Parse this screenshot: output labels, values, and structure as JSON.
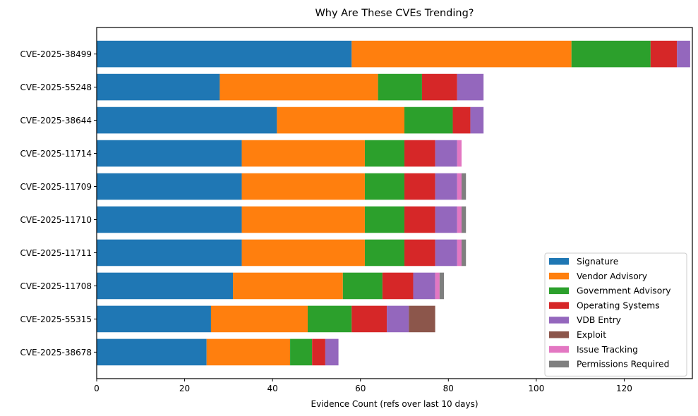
{
  "chart_data": {
    "type": "bar",
    "orientation": "horizontal",
    "stacked": true,
    "title": "Why Are These CVEs Trending?",
    "xlabel": "Evidence Count (refs over last 10 days)",
    "ylabel": "",
    "xlim": [
      0,
      135.5
    ],
    "xticks": [
      0,
      20,
      40,
      60,
      80,
      100,
      120
    ],
    "grid": false,
    "legend_position": "lower-right",
    "categories": [
      "CVE-2025-38499",
      "CVE-2025-55248",
      "CVE-2025-38644",
      "CVE-2025-11714",
      "CVE-2025-11709",
      "CVE-2025-11710",
      "CVE-2025-11711",
      "CVE-2025-11708",
      "CVE-2025-55315",
      "CVE-2025-38678"
    ],
    "series": [
      {
        "name": "Signature",
        "color": "#1f77b4",
        "values": [
          58,
          28,
          41,
          33,
          33,
          33,
          33,
          31,
          26,
          25
        ]
      },
      {
        "name": "Vendor Advisory",
        "color": "#ff7f0e",
        "values": [
          50,
          36,
          29,
          28,
          28,
          28,
          28,
          25,
          22,
          19
        ]
      },
      {
        "name": "Government Advisory",
        "color": "#2ca02c",
        "values": [
          18,
          10,
          11,
          9,
          9,
          9,
          9,
          9,
          10,
          5
        ]
      },
      {
        "name": "Operating Systems",
        "color": "#d62728",
        "values": [
          6,
          8,
          4,
          7,
          7,
          7,
          7,
          7,
          8,
          3
        ]
      },
      {
        "name": "VDB Entry",
        "color": "#9467bd",
        "values": [
          3,
          6,
          3,
          5,
          5,
          5,
          5,
          5,
          5,
          3
        ]
      },
      {
        "name": "Exploit",
        "color": "#8c564b",
        "values": [
          0,
          0,
          0,
          0,
          0,
          0,
          0,
          0,
          6,
          0
        ]
      },
      {
        "name": "Issue Tracking",
        "color": "#e377c2",
        "values": [
          0,
          0,
          0,
          1,
          1,
          1,
          1,
          1,
          0,
          0
        ]
      },
      {
        "name": "Permissions Required",
        "color": "#7f7f7f",
        "values": [
          0,
          0,
          0,
          0,
          1,
          1,
          1,
          1,
          0,
          0
        ]
      }
    ]
  }
}
